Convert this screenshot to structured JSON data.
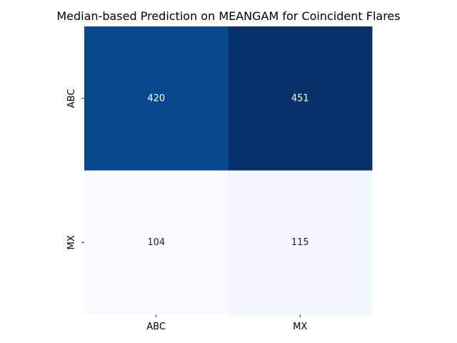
{
  "chart_data": {
    "type": "heatmap",
    "title": "Median-based Prediction on MEANGAM for Coincident Flares",
    "xlabel": "",
    "ylabel": "",
    "x_categories": [
      "ABC",
      "MX"
    ],
    "y_categories": [
      "ABC",
      "MX"
    ],
    "values": [
      [
        420,
        451
      ],
      [
        104,
        115
      ]
    ],
    "colormap": "Blues",
    "colorbar": false,
    "annotations": true,
    "label_colors": {
      "dark_cell_text": "#ffffff",
      "light_cell_text": "#262626"
    }
  }
}
